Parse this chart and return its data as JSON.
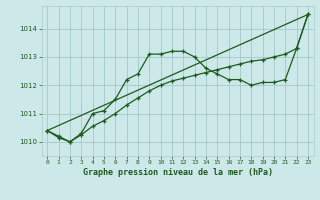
{
  "background_color": "#cce8e8",
  "grid_color": "#aacccc",
  "line_color": "#1a5c1a",
  "title": "Graphe pression niveau de la mer (hPa)",
  "xlim": [
    -0.5,
    23.5
  ],
  "ylim": [
    1009.5,
    1014.8
  ],
  "xticks": [
    0,
    1,
    2,
    3,
    4,
    5,
    6,
    7,
    8,
    9,
    10,
    11,
    12,
    13,
    14,
    15,
    16,
    17,
    18,
    19,
    20,
    21,
    22,
    23
  ],
  "yticks": [
    1010,
    1011,
    1012,
    1013,
    1014
  ],
  "series1_x": [
    0,
    1,
    2,
    3,
    4,
    5,
    6,
    7,
    8,
    9,
    10,
    11,
    12,
    13,
    14,
    15,
    16,
    17,
    18,
    19,
    20,
    21,
    22,
    23
  ],
  "series1_y": [
    1010.4,
    1010.2,
    1010.0,
    1010.3,
    1011.0,
    1011.1,
    1011.5,
    1012.2,
    1012.4,
    1013.1,
    1013.1,
    1013.2,
    1013.2,
    1013.0,
    1012.6,
    1012.4,
    1012.2,
    1012.2,
    1012.0,
    1012.1,
    1012.1,
    1012.2,
    1013.3,
    1014.5
  ],
  "series2_x": [
    0,
    1,
    2,
    3,
    4,
    5,
    6,
    7,
    8,
    9,
    10,
    11,
    12,
    13,
    14,
    15,
    16,
    17,
    18,
    19,
    20,
    21,
    22,
    23
  ],
  "series2_y": [
    1010.4,
    1010.15,
    1010.0,
    1010.25,
    1010.55,
    1010.75,
    1011.0,
    1011.3,
    1011.55,
    1011.8,
    1012.0,
    1012.15,
    1012.25,
    1012.35,
    1012.45,
    1012.55,
    1012.65,
    1012.75,
    1012.85,
    1012.9,
    1013.0,
    1013.1,
    1013.3,
    1014.5
  ],
  "series3_x": [
    0,
    23
  ],
  "series3_y": [
    1010.4,
    1014.5
  ]
}
